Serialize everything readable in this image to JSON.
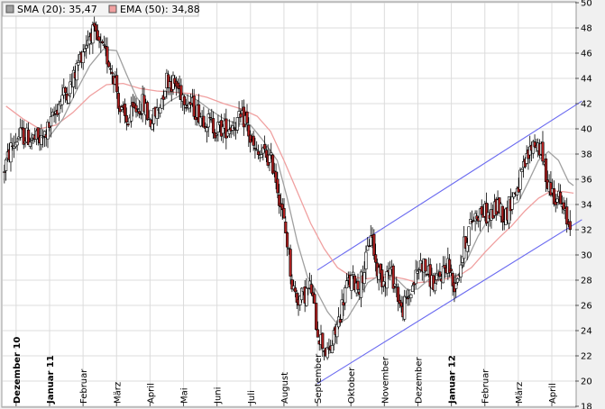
{
  "legend": {
    "sma": {
      "label": "SMA (20): 35,47",
      "color": "#a0a0a0"
    },
    "ema": {
      "label": "EMA (50): 34,88",
      "color": "#f0a0a0"
    }
  },
  "colors": {
    "channel": "#6b6bf0",
    "up_candle": "#ffffff",
    "down_candle": "#b02020",
    "grid": "#dcdcdc",
    "plot_bg": "#ffffff",
    "frame_bg": "#f0f0f0"
  },
  "chart_data": {
    "type": "candlestick",
    "ylim": [
      18,
      50
    ],
    "yticks": [
      18,
      20,
      22,
      24,
      26,
      28,
      30,
      32,
      34,
      36,
      38,
      40,
      42,
      44,
      46,
      48,
      50
    ],
    "x_range_months": [
      -0.4,
      16.7
    ],
    "month_ticks": [
      {
        "label": "Dezember 10",
        "pos": 0,
        "bold": true
      },
      {
        "label": "Januar 11",
        "pos": 1,
        "bold": true
      },
      {
        "label": "Februar",
        "pos": 2,
        "bold": false
      },
      {
        "label": "März",
        "pos": 3,
        "bold": false
      },
      {
        "label": "April",
        "pos": 4,
        "bold": false
      },
      {
        "label": "Mai",
        "pos": 5,
        "bold": false
      },
      {
        "label": "Juni",
        "pos": 6,
        "bold": false
      },
      {
        "label": "Juli",
        "pos": 7,
        "bold": false
      },
      {
        "label": "August",
        "pos": 8,
        "bold": false
      },
      {
        "label": "September",
        "pos": 9,
        "bold": false
      },
      {
        "label": "Oktober",
        "pos": 10,
        "bold": false
      },
      {
        "label": "November",
        "pos": 11,
        "bold": false
      },
      {
        "label": "Dezember",
        "pos": 12,
        "bold": false
      },
      {
        "label": "Januar 12",
        "pos": 13,
        "bold": true
      },
      {
        "label": "Februar",
        "pos": 14,
        "bold": false
      },
      {
        "label": "März",
        "pos": 15,
        "bold": false
      },
      {
        "label": "April",
        "pos": 16,
        "bold": false
      }
    ],
    "price_path": [
      [
        -0.35,
        36.5
      ],
      [
        -0.1,
        38.5
      ],
      [
        0.15,
        39.5
      ],
      [
        0.45,
        39.3
      ],
      [
        0.8,
        39.0
      ],
      [
        1.1,
        40.5
      ],
      [
        1.4,
        42.5
      ],
      [
        1.7,
        43.5
      ],
      [
        2.0,
        46.0
      ],
      [
        2.3,
        47.8
      ],
      [
        2.55,
        46.5
      ],
      [
        2.8,
        45.5
      ],
      [
        3.0,
        44.0
      ],
      [
        3.15,
        41.5
      ],
      [
        3.35,
        40.5
      ],
      [
        3.6,
        41.5
      ],
      [
        3.85,
        42.0
      ],
      [
        4.05,
        40.5
      ],
      [
        4.3,
        41.5
      ],
      [
        4.55,
        44.0
      ],
      [
        4.8,
        43.5
      ],
      [
        5.1,
        42.5
      ],
      [
        5.4,
        41.5
      ],
      [
        5.7,
        40.8
      ],
      [
        6.0,
        40.0
      ],
      [
        6.3,
        40.0
      ],
      [
        6.6,
        40.5
      ],
      [
        6.9,
        40.8
      ],
      [
        7.05,
        39.0
      ],
      [
        7.25,
        37.8
      ],
      [
        7.5,
        38.0
      ],
      [
        7.75,
        37.0
      ],
      [
        7.95,
        34.0
      ],
      [
        8.15,
        31.0
      ],
      [
        8.3,
        27.5
      ],
      [
        8.45,
        26.5
      ],
      [
        8.65,
        26.8
      ],
      [
        8.85,
        27.5
      ],
      [
        9.05,
        24.0
      ],
      [
        9.2,
        23.0
      ],
      [
        9.35,
        22.0
      ],
      [
        9.5,
        23.0
      ],
      [
        9.7,
        25.0
      ],
      [
        9.9,
        27.5
      ],
      [
        10.1,
        28.0
      ],
      [
        10.3,
        27.5
      ],
      [
        10.5,
        29.5
      ],
      [
        10.65,
        32.0
      ],
      [
        10.8,
        29.0
      ],
      [
        11.0,
        28.0
      ],
      [
        11.2,
        28.8
      ],
      [
        11.4,
        27.5
      ],
      [
        11.55,
        25.5
      ],
      [
        11.75,
        26.5
      ],
      [
        11.95,
        28.0
      ],
      [
        12.15,
        29.5
      ],
      [
        12.35,
        28.5
      ],
      [
        12.55,
        27.5
      ],
      [
        12.75,
        28.5
      ],
      [
        12.95,
        29.5
      ],
      [
        13.1,
        27.5
      ],
      [
        13.25,
        28.5
      ],
      [
        13.45,
        31.0
      ],
      [
        13.7,
        33.0
      ],
      [
        13.95,
        33.5
      ],
      [
        14.2,
        33.0
      ],
      [
        14.45,
        34.0
      ],
      [
        14.65,
        33.0
      ],
      [
        14.85,
        34.5
      ],
      [
        15.05,
        35.5
      ],
      [
        15.3,
        37.5
      ],
      [
        15.5,
        39.0
      ],
      [
        15.7,
        38.5
      ],
      [
        15.85,
        36.5
      ],
      [
        16.05,
        35.0
      ],
      [
        16.25,
        34.5
      ],
      [
        16.45,
        33.0
      ],
      [
        16.55,
        32.5
      ]
    ],
    "sma": [
      [
        0.2,
        38.8
      ],
      [
        0.6,
        39.2
      ],
      [
        1.0,
        39.4
      ],
      [
        1.4,
        40.8
      ],
      [
        1.8,
        43.0
      ],
      [
        2.2,
        45.0
      ],
      [
        2.6,
        46.3
      ],
      [
        3.0,
        46.2
      ],
      [
        3.3,
        44.3
      ],
      [
        3.6,
        42.5
      ],
      [
        3.9,
        41.5
      ],
      [
        4.2,
        41.4
      ],
      [
        4.6,
        42.2
      ],
      [
        5.0,
        42.8
      ],
      [
        5.4,
        42.3
      ],
      [
        5.8,
        41.5
      ],
      [
        6.2,
        40.8
      ],
      [
        6.6,
        40.4
      ],
      [
        7.0,
        40.3
      ],
      [
        7.4,
        39.0
      ],
      [
        7.8,
        37.5
      ],
      [
        8.1,
        34.5
      ],
      [
        8.4,
        31.0
      ],
      [
        8.7,
        28.3
      ],
      [
        9.0,
        27.0
      ],
      [
        9.3,
        25.5
      ],
      [
        9.6,
        24.5
      ],
      [
        9.9,
        25.0
      ],
      [
        10.2,
        26.3
      ],
      [
        10.5,
        27.8
      ],
      [
        10.8,
        28.3
      ],
      [
        11.1,
        28.5
      ],
      [
        11.4,
        28.0
      ],
      [
        11.7,
        27.2
      ],
      [
        12.0,
        27.3
      ],
      [
        12.3,
        28.0
      ],
      [
        12.6,
        28.3
      ],
      [
        12.9,
        28.3
      ],
      [
        13.2,
        28.4
      ],
      [
        13.5,
        29.8
      ],
      [
        13.8,
        31.5
      ],
      [
        14.1,
        32.8
      ],
      [
        14.4,
        33.3
      ],
      [
        14.7,
        33.8
      ],
      [
        15.0,
        34.2
      ],
      [
        15.3,
        35.8
      ],
      [
        15.6,
        37.5
      ],
      [
        15.9,
        38.2
      ],
      [
        16.2,
        37.5
      ],
      [
        16.5,
        35.8
      ],
      [
        16.65,
        35.5
      ]
    ],
    "ema": [
      [
        -0.3,
        41.8
      ],
      [
        0.2,
        40.8
      ],
      [
        0.7,
        40.0
      ],
      [
        1.2,
        40.3
      ],
      [
        1.7,
        41.3
      ],
      [
        2.2,
        42.6
      ],
      [
        2.7,
        43.5
      ],
      [
        3.2,
        43.6
      ],
      [
        3.7,
        43.2
      ],
      [
        4.2,
        43.0
      ],
      [
        4.7,
        42.9
      ],
      [
        5.2,
        42.8
      ],
      [
        5.7,
        42.5
      ],
      [
        6.2,
        42.0
      ],
      [
        6.7,
        41.6
      ],
      [
        7.2,
        41.0
      ],
      [
        7.6,
        39.8
      ],
      [
        8.0,
        37.5
      ],
      [
        8.4,
        35.0
      ],
      [
        8.8,
        32.5
      ],
      [
        9.2,
        30.5
      ],
      [
        9.6,
        29.0
      ],
      [
        10.0,
        28.3
      ],
      [
        10.4,
        28.1
      ],
      [
        10.8,
        28.2
      ],
      [
        11.2,
        28.3
      ],
      [
        11.6,
        28.1
      ],
      [
        12.0,
        27.8
      ],
      [
        12.4,
        27.9
      ],
      [
        12.8,
        28.1
      ],
      [
        13.2,
        28.3
      ],
      [
        13.6,
        29.0
      ],
      [
        14.0,
        30.2
      ],
      [
        14.4,
        31.3
      ],
      [
        14.8,
        32.3
      ],
      [
        15.2,
        33.5
      ],
      [
        15.6,
        34.5
      ],
      [
        16.0,
        35.1
      ],
      [
        16.4,
        35.0
      ],
      [
        16.65,
        34.9
      ]
    ],
    "channel": {
      "upper": [
        [
          9.0,
          28.8
        ],
        [
          16.9,
          42.2
        ]
      ],
      "lower": [
        [
          9.0,
          19.8
        ],
        [
          16.9,
          32.8
        ]
      ]
    }
  }
}
